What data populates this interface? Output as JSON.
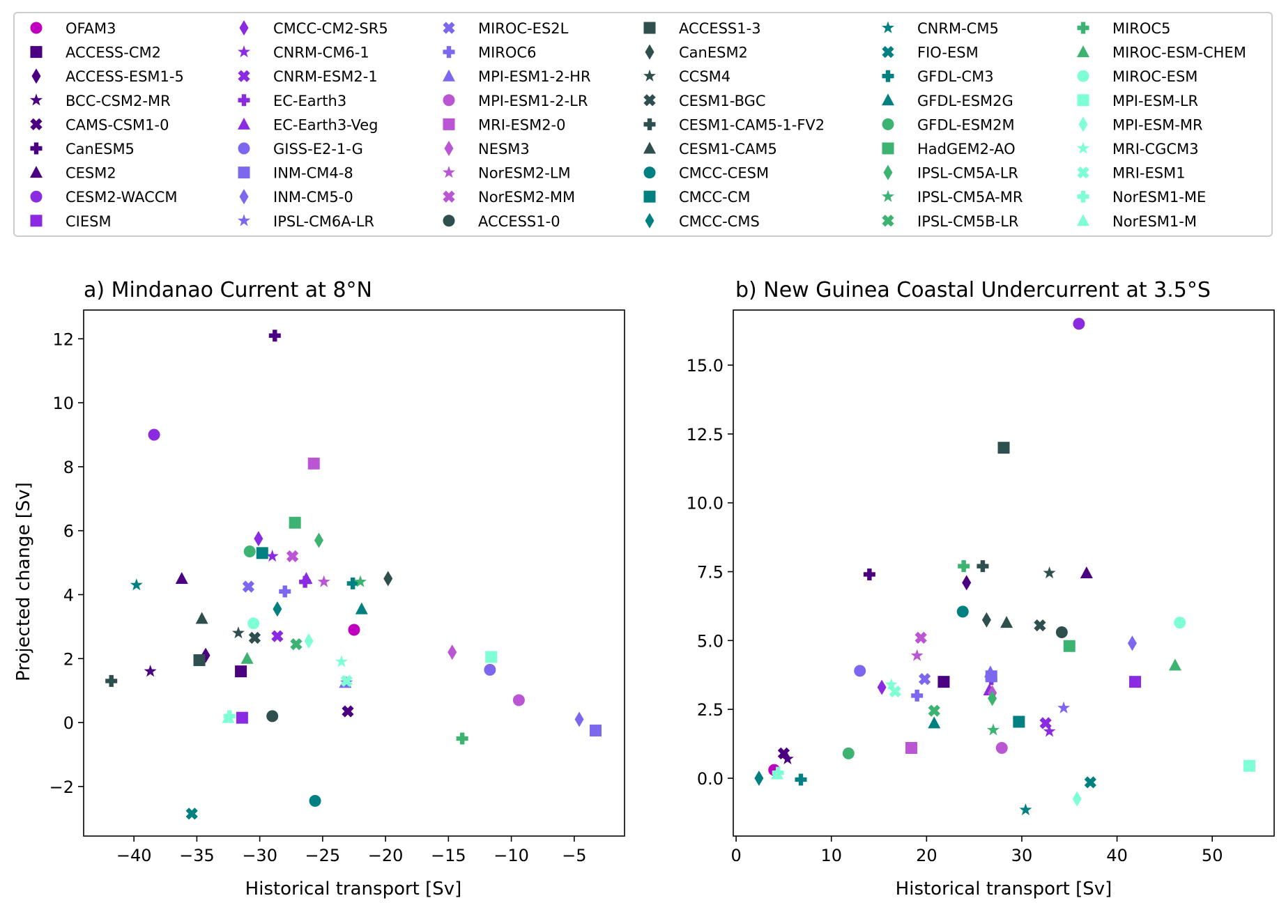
{
  "models": [
    {
      "name": "OFAM3",
      "color": "#c000c0",
      "marker": "circle"
    },
    {
      "name": "ACCESS-CM2",
      "color": "#4b0082",
      "marker": "square"
    },
    {
      "name": "ACCESS-ESM1-5",
      "color": "#4b0082",
      "marker": "diamond"
    },
    {
      "name": "BCC-CSM2-MR",
      "color": "#4b0082",
      "marker": "star"
    },
    {
      "name": "CAMS-CSM1-0",
      "color": "#4b0082",
      "marker": "x"
    },
    {
      "name": "CanESM5",
      "color": "#4b0082",
      "marker": "plus"
    },
    {
      "name": "CESM2",
      "color": "#4b0082",
      "marker": "triangle"
    },
    {
      "name": "CESM2-WACCM",
      "color": "#8a2be2",
      "marker": "circle"
    },
    {
      "name": "CIESM",
      "color": "#8a2be2",
      "marker": "square"
    },
    {
      "name": "CMCC-CM2-SR5",
      "color": "#8a2be2",
      "marker": "diamond"
    },
    {
      "name": "CNRM-CM6-1",
      "color": "#8a2be2",
      "marker": "star"
    },
    {
      "name": "CNRM-ESM2-1",
      "color": "#8a2be2",
      "marker": "x"
    },
    {
      "name": "EC-Earth3",
      "color": "#8a2be2",
      "marker": "plus"
    },
    {
      "name": "EC-Earth3-Veg",
      "color": "#8a2be2",
      "marker": "triangle"
    },
    {
      "name": "GISS-E2-1-G",
      "color": "#7b68ee",
      "marker": "circle"
    },
    {
      "name": "INM-CM4-8",
      "color": "#7b68ee",
      "marker": "square"
    },
    {
      "name": "INM-CM5-0",
      "color": "#7b68ee",
      "marker": "diamond"
    },
    {
      "name": "IPSL-CM6A-LR",
      "color": "#7b68ee",
      "marker": "star"
    },
    {
      "name": "MIROC-ES2L",
      "color": "#7b68ee",
      "marker": "x"
    },
    {
      "name": "MIROC6",
      "color": "#7b68ee",
      "marker": "plus"
    },
    {
      "name": "MPI-ESM1-2-HR",
      "color": "#7b68ee",
      "marker": "triangle"
    },
    {
      "name": "MPI-ESM1-2-LR",
      "color": "#ba55d3",
      "marker": "circle"
    },
    {
      "name": "MRI-ESM2-0",
      "color": "#ba55d3",
      "marker": "square"
    },
    {
      "name": "NESM3",
      "color": "#ba55d3",
      "marker": "diamond"
    },
    {
      "name": "NorESM2-LM",
      "color": "#ba55d3",
      "marker": "star"
    },
    {
      "name": "NorESM2-MM",
      "color": "#ba55d3",
      "marker": "x"
    },
    {
      "name": "ACCESS1-0",
      "color": "#2f4f4f",
      "marker": "circle"
    },
    {
      "name": "ACCESS1-3",
      "color": "#2f4f4f",
      "marker": "square"
    },
    {
      "name": "CanESM2",
      "color": "#2f4f4f",
      "marker": "diamond"
    },
    {
      "name": "CCSM4",
      "color": "#2f4f4f",
      "marker": "star"
    },
    {
      "name": "CESM1-BGC",
      "color": "#2f4f4f",
      "marker": "x"
    },
    {
      "name": "CESM1-CAM5-1-FV2",
      "color": "#2f4f4f",
      "marker": "plus"
    },
    {
      "name": "CESM1-CAM5",
      "color": "#2f4f4f",
      "marker": "triangle"
    },
    {
      "name": "CMCC-CESM",
      "color": "#008080",
      "marker": "circle"
    },
    {
      "name": "CMCC-CM",
      "color": "#008080",
      "marker": "square"
    },
    {
      "name": "CMCC-CMS",
      "color": "#008080",
      "marker": "diamond"
    },
    {
      "name": "CNRM-CM5",
      "color": "#008080",
      "marker": "star"
    },
    {
      "name": "FIO-ESM",
      "color": "#008080",
      "marker": "x"
    },
    {
      "name": "GFDL-CM3",
      "color": "#008080",
      "marker": "plus"
    },
    {
      "name": "GFDL-ESM2G",
      "color": "#008080",
      "marker": "triangle"
    },
    {
      "name": "GFDL-ESM2M",
      "color": "#3cb371",
      "marker": "circle"
    },
    {
      "name": "HadGEM2-AO",
      "color": "#3cb371",
      "marker": "square"
    },
    {
      "name": "IPSL-CM5A-LR",
      "color": "#3cb371",
      "marker": "diamond"
    },
    {
      "name": "IPSL-CM5A-MR",
      "color": "#3cb371",
      "marker": "star"
    },
    {
      "name": "IPSL-CM5B-LR",
      "color": "#3cb371",
      "marker": "x"
    },
    {
      "name": "MIROC5",
      "color": "#3cb371",
      "marker": "plus"
    },
    {
      "name": "MIROC-ESM-CHEM",
      "color": "#3cb371",
      "marker": "triangle"
    },
    {
      "name": "MIROC-ESM",
      "color": "#7fffd4",
      "marker": "circle"
    },
    {
      "name": "MPI-ESM-LR",
      "color": "#7fffd4",
      "marker": "square"
    },
    {
      "name": "MPI-ESM-MR",
      "color": "#7fffd4",
      "marker": "diamond"
    },
    {
      "name": "MRI-CGCM3",
      "color": "#7fffd4",
      "marker": "star"
    },
    {
      "name": "MRI-ESM1",
      "color": "#7fffd4",
      "marker": "x"
    },
    {
      "name": "NorESM1-ME",
      "color": "#7fffd4",
      "marker": "plus"
    },
    {
      "name": "NorESM1-M",
      "color": "#7fffd4",
      "marker": "triangle"
    }
  ],
  "chart_data": [
    {
      "type": "scatter",
      "title": "a) Mindanao Current at 8°N",
      "xlabel": "Historical transport [Sv]",
      "ylabel": "Projected change [Sv]",
      "xlim": [
        -44,
        -1
      ],
      "ylim": [
        -3.55,
        12.9
      ],
      "xticks": [
        -40,
        -35,
        -30,
        -25,
        -20,
        -15,
        -10,
        -5
      ],
      "xtick_labels": [
        "−40",
        "−35",
        "−30",
        "−25",
        "−20",
        "−15",
        "−10",
        "−5"
      ],
      "yticks": [
        -2,
        0,
        2,
        4,
        6,
        8,
        10,
        12
      ],
      "ytick_labels": [
        "−2",
        "0",
        "2",
        "4",
        "6",
        "8",
        "10",
        "12"
      ],
      "x": [
        -22.5,
        -31.5,
        -34.3,
        -38.7,
        -23.0,
        -28.8,
        -36.2,
        -38.4,
        -31.4,
        -30.1,
        -29.0,
        -28.6,
        -26.4,
        -26.3,
        -11.7,
        -3.3,
        -4.6,
        -23.1,
        -30.9,
        -28.0,
        -23.2,
        -9.4,
        -25.7,
        -14.7,
        -24.9,
        -27.4,
        -29.0,
        -34.8,
        -19.8,
        -31.7,
        -30.4,
        -41.8,
        -34.6,
        -25.6,
        -29.8,
        -28.6,
        -39.8,
        -35.4,
        -22.6,
        -21.9,
        -30.8,
        -27.2,
        -25.3,
        -22.0,
        -27.1,
        -13.9,
        -31.0,
        -30.5,
        -11.6,
        -26.1,
        -23.5,
        -23.1,
        -32.4,
        -32.5
      ],
      "y": [
        2.9,
        1.6,
        2.1,
        1.6,
        0.35,
        12.1,
        4.5,
        9.0,
        0.15,
        5.75,
        5.2,
        2.7,
        4.4,
        4.5,
        1.65,
        -0.25,
        0.1,
        1.25,
        4.25,
        4.1,
        1.25,
        0.7,
        8.1,
        2.2,
        4.4,
        5.2,
        0.2,
        1.95,
        4.5,
        2.8,
        2.65,
        1.3,
        3.25,
        -2.45,
        5.3,
        3.55,
        4.3,
        -2.85,
        4.35,
        3.55,
        5.35,
        6.25,
        5.7,
        4.4,
        2.45,
        -0.5,
        2.0,
        3.1,
        2.05,
        2.55,
        1.9,
        1.3,
        0.2,
        0.15
      ]
    },
    {
      "type": "scatter",
      "title": "b) New Guinea Coastal Undercurrent at 3.5°S",
      "xlabel": "Historical transport [Sv]",
      "ylabel": "",
      "xlim": [
        -0.3,
        56.5
      ],
      "ylim": [
        -2.1,
        17.0
      ],
      "xticks": [
        0,
        10,
        20,
        30,
        40,
        50
      ],
      "xtick_labels": [
        "0",
        "10",
        "20",
        "30",
        "40",
        "50"
      ],
      "yticks": [
        0,
        2.5,
        5,
        7.5,
        10,
        12.5,
        15
      ],
      "ytick_labels": [
        "0.0",
        "2.5",
        "5.0",
        "7.5",
        "10.0",
        "12.5",
        "15.0"
      ],
      "x": [
        4.0,
        21.8,
        24.2,
        5.4,
        5.0,
        14.0,
        36.8,
        36.0,
        41.9,
        15.3,
        32.9,
        32.5,
        26.8,
        26.6,
        13.0,
        26.8,
        41.6,
        34.4,
        19.8,
        19.0,
        26.7,
        27.9,
        18.4,
        26.9,
        19.0,
        19.4,
        34.2,
        28.1,
        26.3,
        32.9,
        31.9,
        25.9,
        28.4,
        23.8,
        29.7,
        2.4,
        30.4,
        37.2,
        6.8,
        20.8,
        11.8,
        35.0,
        26.9,
        27.0,
        20.8,
        23.9,
        46.1,
        46.6,
        53.9,
        35.8,
        16.3,
        16.7,
        4.4,
        4.3
      ],
      "y": [
        0.3,
        3.5,
        7.1,
        0.7,
        0.9,
        7.4,
        7.45,
        16.5,
        3.5,
        3.3,
        1.7,
        2.0,
        3.6,
        3.2,
        3.9,
        3.7,
        4.9,
        2.55,
        3.6,
        3.0,
        3.85,
        1.1,
        1.1,
        3.1,
        4.45,
        5.1,
        5.3,
        12.0,
        5.75,
        7.45,
        5.55,
        7.7,
        5.65,
        6.05,
        2.05,
        0.0,
        -1.15,
        -0.15,
        -0.05,
        2.0,
        0.9,
        4.8,
        2.9,
        1.75,
        2.45,
        7.7,
        4.1,
        5.65,
        0.45,
        -0.75,
        3.4,
        3.15,
        0.2,
        0.15
      ]
    }
  ]
}
